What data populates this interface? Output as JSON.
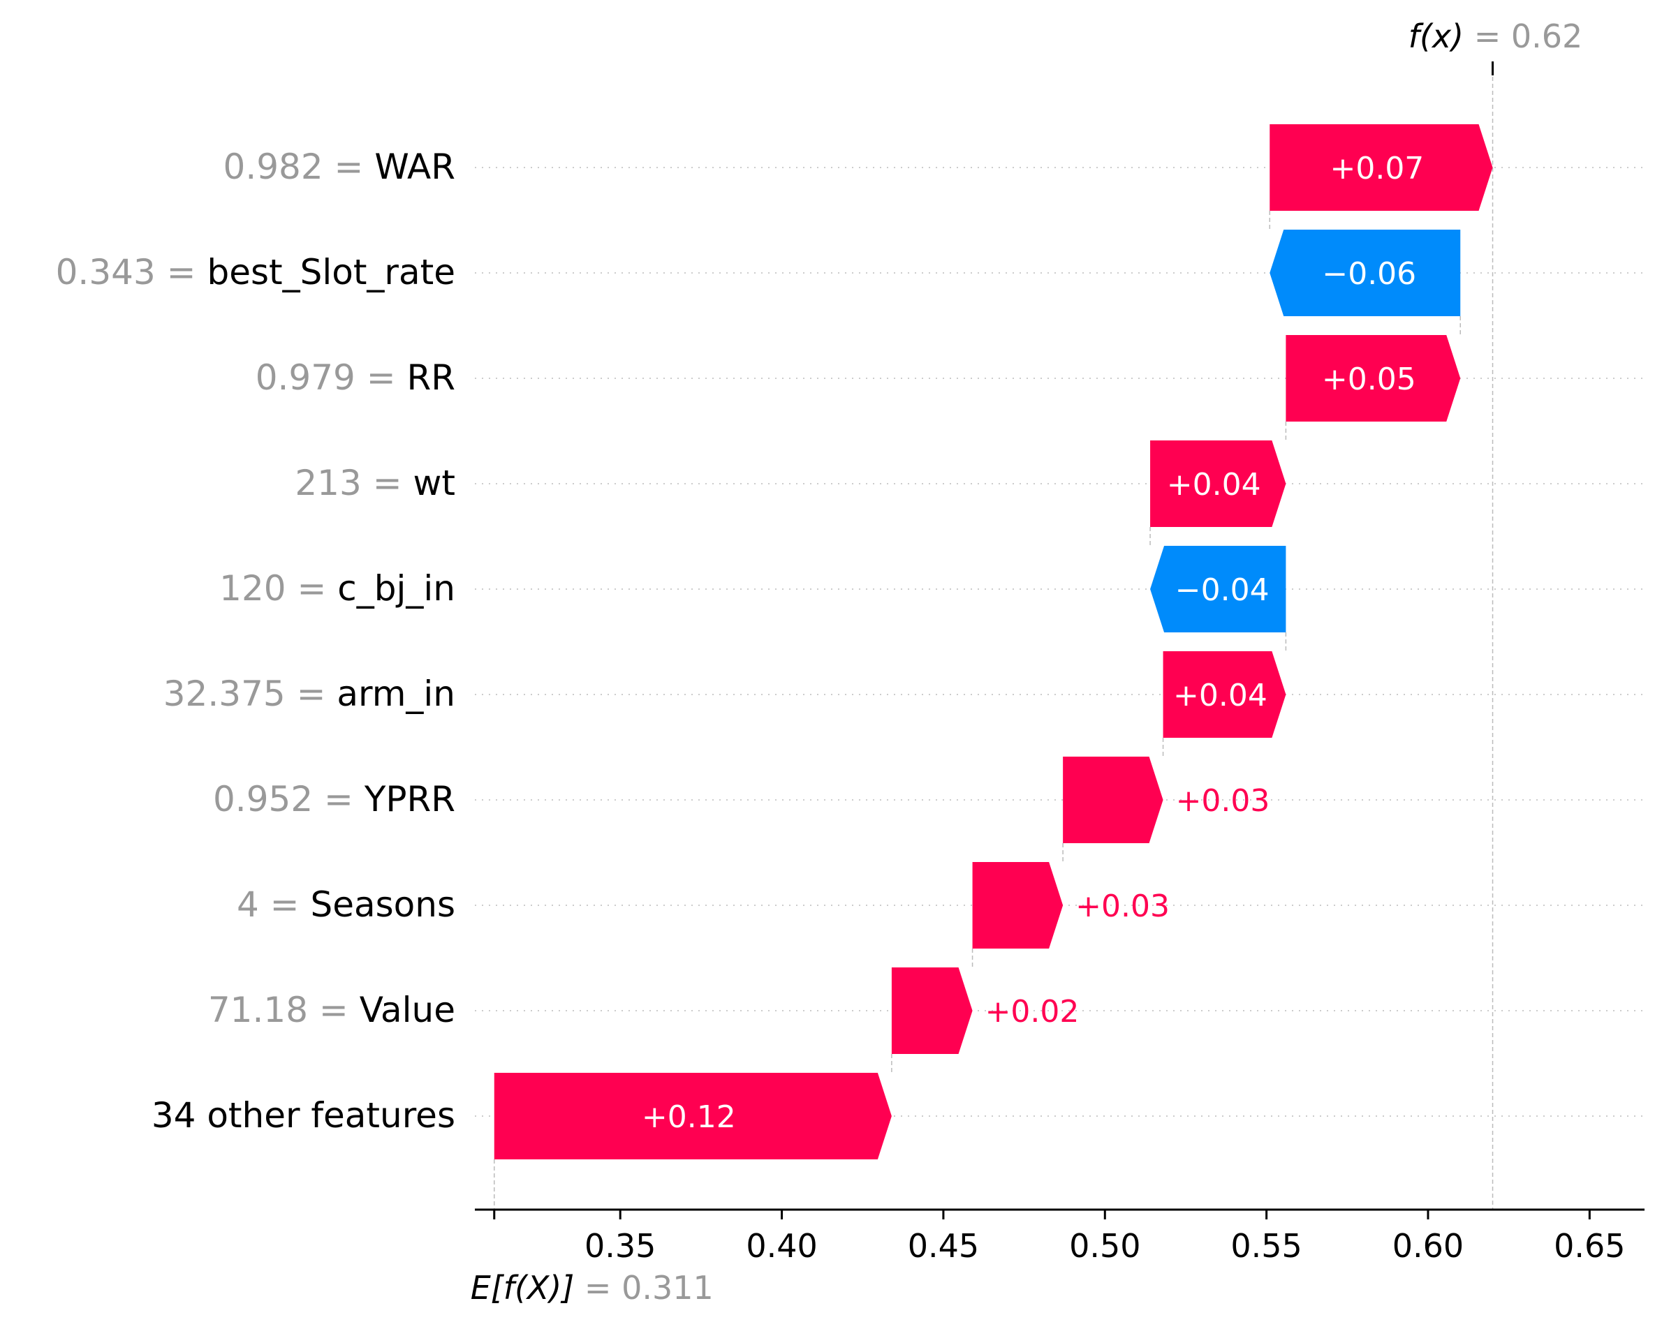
{
  "chart_data": {
    "type": "waterfall",
    "base_value": 0.311,
    "base_label": "E[f(X)]",
    "base_value_text": "= 0.311",
    "output_value": 0.62,
    "output_label": "f(x)",
    "output_value_text": "= 0.62",
    "xlim": [
      0.305,
      0.667
    ],
    "x_ticks": [
      0.35,
      0.4,
      0.45,
      0.5,
      0.55,
      0.6,
      0.65
    ],
    "x_tick_labels": [
      "0.35",
      "0.40",
      "0.45",
      "0.50",
      "0.55",
      "0.60",
      "0.65"
    ],
    "features": [
      {
        "value": "0.982",
        "name": "WAR",
        "shap": 0.07,
        "label": "+0.07",
        "start": 0.551,
        "end": 0.62
      },
      {
        "value": "0.343",
        "name": "best_Slot_rate",
        "shap": -0.06,
        "label": "−0.06",
        "start": 0.61,
        "end": 0.551
      },
      {
        "value": "0.979",
        "name": "RR",
        "shap": 0.05,
        "label": "+0.05",
        "start": 0.556,
        "end": 0.61
      },
      {
        "value": "213",
        "name": "wt",
        "shap": 0.04,
        "label": "+0.04",
        "start": 0.514,
        "end": 0.556
      },
      {
        "value": "120",
        "name": "c_bj_in",
        "shap": -0.04,
        "label": "−0.04",
        "start": 0.556,
        "end": 0.514
      },
      {
        "value": "32.375",
        "name": "arm_in",
        "shap": 0.04,
        "label": "+0.04",
        "start": 0.518,
        "end": 0.556
      },
      {
        "value": "0.952",
        "name": "YPRR",
        "shap": 0.03,
        "label": "+0.03",
        "start": 0.487,
        "end": 0.518
      },
      {
        "value": "4",
        "name": "Seasons",
        "shap": 0.03,
        "label": "+0.03",
        "start": 0.459,
        "end": 0.487
      },
      {
        "value": "71.18",
        "name": "Value",
        "shap": 0.02,
        "label": "+0.02",
        "start": 0.434,
        "end": 0.459
      },
      {
        "value": "",
        "name": "34 other features",
        "shap": 0.12,
        "label": "+0.12",
        "start": 0.311,
        "end": 0.434
      }
    ],
    "colors": {
      "positive": "#ff0051",
      "negative": "#008bfb",
      "muted": "#999999"
    }
  }
}
